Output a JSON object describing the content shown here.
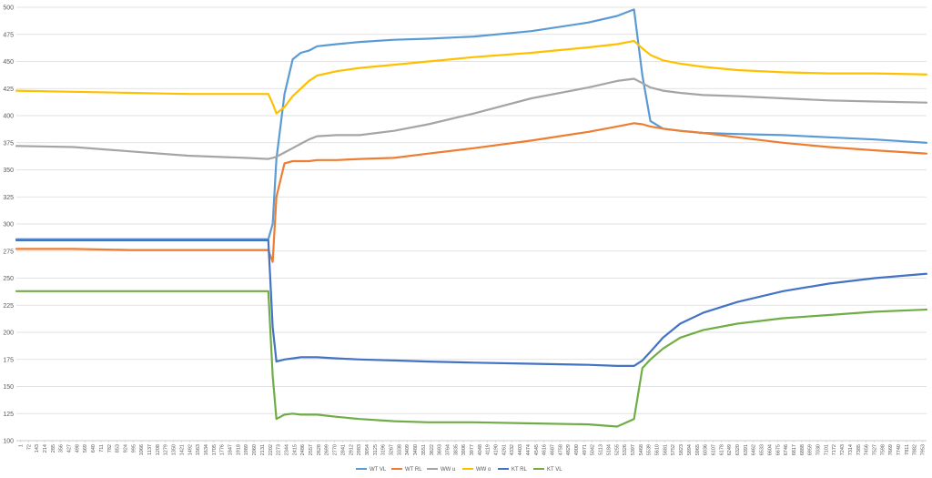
{
  "chart_data": {
    "type": "line",
    "title": "",
    "xlabel": "",
    "ylabel": "",
    "ylim": [
      100,
      500
    ],
    "y_ticks": [
      100,
      125,
      150,
      175,
      200,
      225,
      250,
      275,
      300,
      325,
      350,
      375,
      400,
      425,
      450,
      475,
      500
    ],
    "grid": "horizontal",
    "legend_position": "bottom",
    "x_tick_labels": [
      "1",
      "72",
      "143",
      "214",
      "285",
      "356",
      "427",
      "498",
      "569",
      "640",
      "711",
      "782",
      "853",
      "924",
      "995",
      "1066",
      "1137",
      "1208",
      "1279",
      "1350",
      "1421",
      "1492",
      "1563",
      "1634",
      "1705",
      "1776",
      "1847",
      "1918",
      "1989",
      "2060",
      "2131",
      "2202",
      "2273",
      "2344",
      "2415",
      "2486",
      "2557",
      "2628",
      "2699",
      "2770",
      "2841",
      "2912",
      "2983",
      "3054",
      "3125",
      "3196",
      "3267",
      "3338",
      "3409",
      "3480",
      "3551",
      "3622",
      "3693",
      "3764",
      "3835",
      "3906",
      "3977",
      "4048",
      "4119",
      "4190",
      "4261",
      "4332",
      "4403",
      "4474",
      "4545",
      "4616",
      "4687",
      "4758",
      "4829",
      "4900",
      "4971",
      "5042",
      "5113",
      "5184",
      "5255",
      "5326",
      "5397",
      "5468",
      "5539",
      "5610",
      "5681",
      "5752",
      "5823",
      "5894",
      "5965",
      "6036",
      "6107",
      "6178",
      "6249",
      "6320",
      "6391",
      "6462",
      "6533",
      "6604",
      "6675",
      "6746",
      "6817",
      "6888",
      "6959",
      "7030",
      "7101",
      "7172",
      "7243",
      "7314",
      "7385",
      "7456",
      "7527",
      "7598",
      "7669",
      "7740",
      "7811",
      "7882",
      "7953"
    ],
    "x": [
      1,
      500,
      1000,
      1500,
      2000,
      2202,
      2240,
      2273,
      2344,
      2415,
      2486,
      2557,
      2628,
      2800,
      3000,
      3300,
      3600,
      4000,
      4500,
      5000,
      5250,
      5397,
      5470,
      5540,
      5650,
      5800,
      6000,
      6300,
      6700,
      7100,
      7500,
      7953
    ],
    "series": [
      {
        "name": "WT VL",
        "color": "#5B9BD5",
        "values": [
          286,
          286,
          286,
          286,
          286,
          286,
          300,
          360,
          420,
          452,
          458,
          460,
          464,
          466,
          468,
          470,
          471,
          473,
          478,
          486,
          492,
          498,
          437,
          395,
          388,
          386,
          384,
          383,
          382,
          380,
          378,
          375
        ]
      },
      {
        "name": "WT RL",
        "color": "#ED7D31",
        "values": [
          277,
          277,
          276,
          276,
          276,
          276,
          265,
          325,
          356,
          358,
          358,
          358,
          359,
          359,
          360,
          361,
          365,
          370,
          377,
          385,
          390,
          393,
          392,
          390,
          388,
          386,
          384,
          380,
          375,
          371,
          368,
          365
        ]
      },
      {
        "name": "WW u",
        "color": "#A5A5A5",
        "values": [
          372,
          371,
          367,
          363,
          361,
          360,
          361,
          362,
          366,
          370,
          374,
          378,
          381,
          382,
          382,
          386,
          392,
          402,
          416,
          426,
          432,
          434,
          430,
          426,
          423,
          421,
          419,
          418,
          416,
          414,
          413,
          412
        ]
      },
      {
        "name": "WW o",
        "color": "#FFC000",
        "values": [
          423,
          422,
          421,
          420,
          420,
          420,
          411,
          402,
          408,
          418,
          425,
          432,
          437,
          441,
          444,
          447,
          450,
          454,
          458,
          463,
          466,
          469,
          462,
          456,
          451,
          448,
          445,
          442,
          440,
          439,
          439,
          438
        ]
      },
      {
        "name": "KT RL",
        "color": "#4472C4",
        "values": [
          285,
          285,
          285,
          285,
          285,
          285,
          205,
          173,
          175,
          176,
          177,
          177,
          177,
          176,
          175,
          174,
          173,
          172,
          171,
          170,
          169,
          169,
          174,
          182,
          195,
          208,
          218,
          228,
          238,
          245,
          250,
          254
        ]
      },
      {
        "name": "KT VL",
        "color": "#70AD47",
        "values": [
          238,
          238,
          238,
          238,
          238,
          238,
          160,
          120,
          124,
          125,
          124,
          124,
          124,
          122,
          120,
          118,
          117,
          117,
          116,
          115,
          113,
          120,
          167,
          175,
          185,
          195,
          202,
          208,
          213,
          216,
          219,
          221
        ]
      }
    ]
  }
}
